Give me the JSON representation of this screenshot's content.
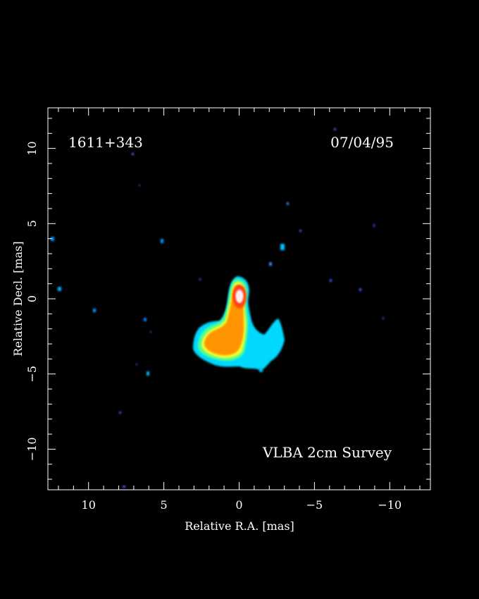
{
  "figure": {
    "source_name": "1611+343",
    "epoch": "07/04/95",
    "survey": "VLBA 2cm Survey"
  },
  "axes": {
    "xlabel": "Relative R.A. [mas]",
    "ylabel": "Relative Decl. [mas]",
    "x_range": [
      12.7,
      -12.7
    ],
    "y_range": [
      -12.7,
      12.7
    ],
    "x_ticks": [
      {
        "value": 10,
        "label": "10"
      },
      {
        "value": 5,
        "label": "5"
      },
      {
        "value": 0,
        "label": "0"
      },
      {
        "value": -5,
        "label": "−5"
      },
      {
        "value": -10,
        "label": "−10"
      }
    ],
    "y_ticks": [
      {
        "value": 10,
        "label": "10"
      },
      {
        "value": 5,
        "label": "5"
      },
      {
        "value": 0,
        "label": "0"
      },
      {
        "value": -5,
        "label": "−5"
      },
      {
        "value": -10,
        "label": "−10"
      }
    ],
    "minor_step": 1
  },
  "colors": {
    "background": "#000000",
    "frame": "#ffffff",
    "colormap": [
      "#1a1aff",
      "#0090ff",
      "#00e0ff",
      "#40ffb0",
      "#b0ff40",
      "#ffe000",
      "#ff8000",
      "#ff3010",
      "#ffc8c8"
    ]
  }
}
